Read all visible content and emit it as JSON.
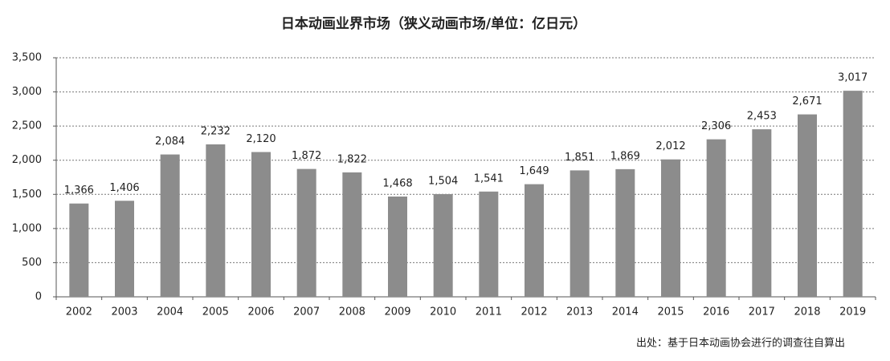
{
  "chart_data": {
    "type": "bar",
    "title": "日本动画业界市场（狭义动画市场/单位：亿日元）",
    "source": "出处：基于日本动画协会进行的调查往自算出",
    "categories": [
      "2002",
      "2003",
      "2004",
      "2005",
      "2006",
      "2007",
      "2008",
      "2009",
      "2010",
      "2011",
      "2012",
      "2013",
      "2014",
      "2015",
      "2016",
      "2017",
      "2018",
      "2019"
    ],
    "values": [
      1366,
      1406,
      2084,
      2232,
      2120,
      1872,
      1822,
      1468,
      1504,
      1541,
      1649,
      1851,
      1869,
      2012,
      2306,
      2453,
      2671,
      3017
    ],
    "value_labels": [
      "1,366",
      "1,406",
      "2,084",
      "2,232",
      "2,120",
      "1,872",
      "1,822",
      "1,468",
      "1,504",
      "1,541",
      "1,649",
      "1,851",
      "1,869",
      "2,012",
      "2,306",
      "2,453",
      "2,671",
      "3,017"
    ],
    "color": "#8c8c8c",
    "ylim": [
      0,
      3500
    ],
    "yticks": [
      0,
      500,
      {
        "value": 1000,
        "label": "1,000"
      },
      {
        "value": 1500,
        "label": "1,500"
      },
      {
        "value": 2000,
        "label": "2,000"
      },
      {
        "value": 2500,
        "label": "2,500"
      },
      {
        "value": 3000,
        "label": "3,000"
      },
      {
        "value": 3500,
        "label": "3,500"
      }
    ],
    "grid": true
  }
}
